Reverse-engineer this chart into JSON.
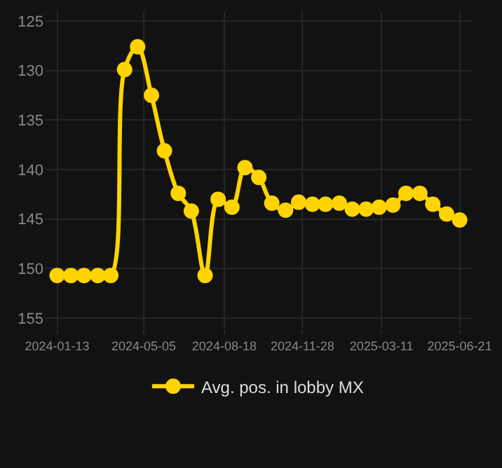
{
  "chart_data": {
    "type": "line",
    "x": [
      "2024-01-13",
      "2024-01-31",
      "2024-02-17",
      "2024-03-06",
      "2024-03-23",
      "2024-04-10",
      "2024-04-27",
      "2024-05-15",
      "2024-06-01",
      "2024-06-19",
      "2024-07-06",
      "2024-07-24",
      "2024-08-10",
      "2024-08-28",
      "2024-09-14",
      "2024-10-02",
      "2024-10-19",
      "2024-11-06",
      "2024-11-23",
      "2024-12-11",
      "2024-12-28",
      "2025-01-15",
      "2025-02-01",
      "2025-02-19",
      "2025-03-08",
      "2025-03-26",
      "2025-04-12",
      "2025-04-30",
      "2025-05-17",
      "2025-06-04",
      "2025-06-21"
    ],
    "series": [
      {
        "name": "Avg. pos. in lobby MX",
        "color": "#ffd400",
        "values": [
          150.7,
          150.7,
          150.7,
          150.7,
          150.7,
          129.9,
          127.6,
          132.5,
          138.1,
          142.4,
          144.2,
          150.7,
          143.0,
          143.8,
          139.8,
          140.8,
          143.4,
          144.1,
          143.3,
          143.5,
          143.5,
          143.4,
          144.0,
          144.0,
          143.8,
          143.6,
          142.4,
          142.4,
          143.5,
          144.5,
          145.1
        ]
      }
    ],
    "ylim": [
      156,
      124
    ],
    "yticks": [
      125,
      130,
      135,
      140,
      145,
      150,
      155
    ],
    "xlim": [
      "2023-12-28",
      "2025-07-06"
    ],
    "xticks": [
      {
        "value": "2024-01-13",
        "label": "2024-01-13"
      },
      {
        "value": "2024-05-05",
        "label": "2024-05-05"
      },
      {
        "value": "2024-08-18",
        "label": "2024-08-18"
      },
      {
        "value": "2024-11-28",
        "label": "2024-11-28"
      },
      {
        "value": "2025-03-11",
        "label": "2025-03-11"
      },
      {
        "value": "2025-06-21",
        "label": "2025-06-21"
      }
    ],
    "grid": true,
    "legend": "bottom",
    "marker": "circle",
    "line_style": "solid"
  }
}
